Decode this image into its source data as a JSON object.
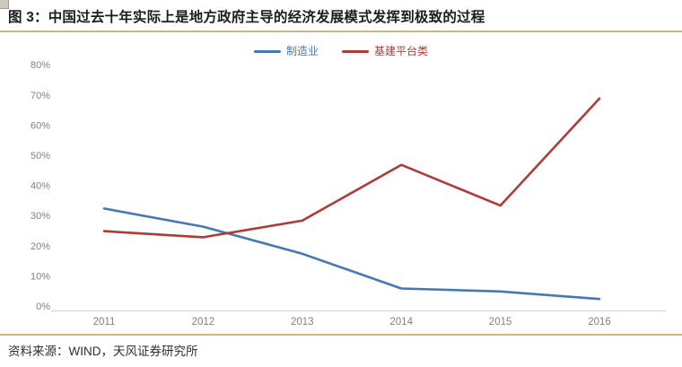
{
  "figure": {
    "title": "图 3：中国过去十年实际上是地方政府主导的经济发展模式发挥到极致的过程",
    "source": "资料来源：WIND，天风证券研究所"
  },
  "colors": {
    "accent_rule": "#ccb58a",
    "axis_line": "#d4d4d4",
    "tick_label": "#808080"
  },
  "chart_data": {
    "type": "line",
    "title": "图 3：中国过去十年实际上是地方政府主导的经济发展模式发挥到极致的过程",
    "categories": [
      "2011",
      "2012",
      "2013",
      "2014",
      "2015",
      "2016"
    ],
    "series": [
      {
        "name": "制造业",
        "color": "#4478b6",
        "values": [
          33.5,
          27.5,
          18.5,
          7,
          6,
          3.5
        ]
      },
      {
        "name": "基建平台类",
        "color": "#b03a36",
        "values": [
          26,
          24,
          29.5,
          48,
          34.5,
          70
        ]
      }
    ],
    "ylim": [
      0,
      80
    ],
    "ytick_step": 10,
    "yticks": [
      "0%",
      "10%",
      "20%",
      "30%",
      "40%",
      "50%",
      "60%",
      "70%",
      "80%"
    ],
    "xlabel": "",
    "ylabel": "",
    "grid": false,
    "legend_position": "top-center",
    "markers": false
  }
}
